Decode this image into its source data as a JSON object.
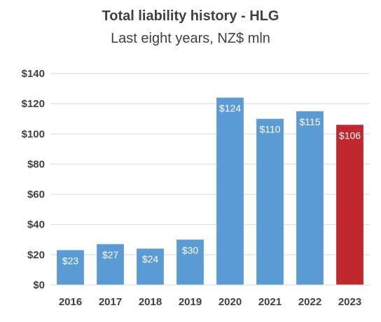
{
  "chart_data": {
    "type": "bar",
    "title": "Total liability history - HLG",
    "subtitle": "Last eight years, NZ$ mln",
    "xlabel": "",
    "ylabel": "",
    "categories": [
      "2016",
      "2017",
      "2018",
      "2019",
      "2020",
      "2021",
      "2022",
      "2023"
    ],
    "values": [
      23,
      27,
      24,
      30,
      124,
      110,
      115,
      106
    ],
    "data_labels": [
      "$23",
      "$27",
      "$24",
      "$30",
      "$124",
      "$110",
      "$115",
      "$106"
    ],
    "ylim": [
      0,
      140
    ],
    "yticks": [
      0,
      20,
      40,
      60,
      80,
      100,
      120,
      140
    ],
    "ytick_labels": [
      "$0",
      "$20",
      "$40",
      "$60",
      "$80",
      "$100",
      "$120",
      "$140"
    ],
    "grid": true,
    "legend": "none",
    "bar_colors": [
      "#5B9BD5",
      "#5B9BD5",
      "#5B9BD5",
      "#5B9BD5",
      "#5B9BD5",
      "#5B9BD5",
      "#5B9BD5",
      "#C0282D"
    ],
    "gridline_color": "#D9D9D9",
    "axis_color": "#D9D9D9",
    "text_color": "#404040",
    "label_color": "#FFFFFF"
  }
}
